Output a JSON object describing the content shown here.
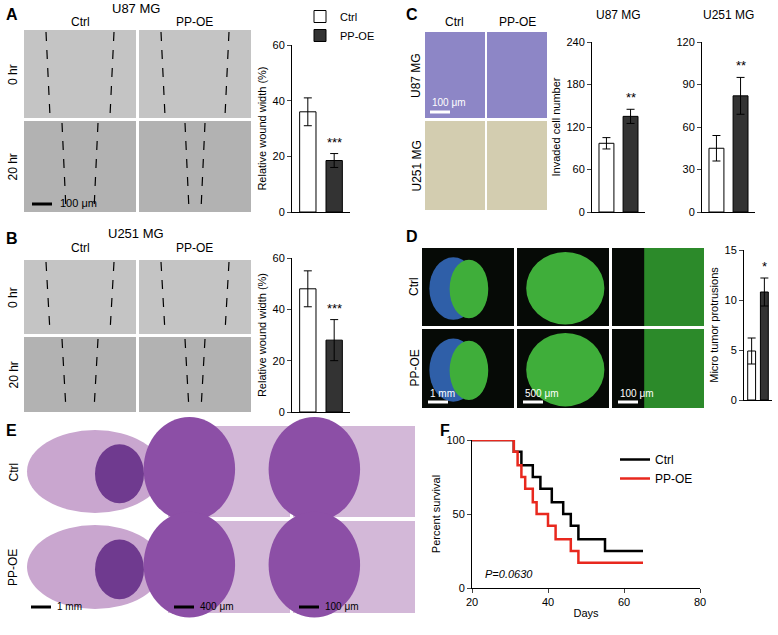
{
  "chart_data": [
    {
      "type": "bar",
      "y_label": "Relative wound width (%)",
      "categories": [
        "Ctrl",
        "PP-OE"
      ],
      "values": [
        36,
        18.5
      ],
      "errors": [
        5,
        2.5
      ],
      "colors": [
        "#ffffff",
        "#333333"
      ],
      "ylim": [
        0,
        60
      ],
      "yticks": [
        0,
        20,
        40,
        60
      ],
      "tick_labels": "y",
      "legend": "top",
      "annotations": [
        {
          "text": "***",
          "category": "PP-OE"
        }
      ]
    },
    {
      "type": "bar",
      "y_label": "Relative wound width (%)",
      "categories": [
        "Ctrl",
        "PP-OE"
      ],
      "values": [
        48,
        28
      ],
      "errors": [
        7,
        8
      ],
      "colors": [
        "#ffffff",
        "#333333"
      ],
      "ylim": [
        0,
        60
      ],
      "yticks": [
        0,
        20,
        40,
        60
      ],
      "tick_labels": "y",
      "annotations": [
        {
          "text": "***",
          "category": "PP-OE"
        }
      ]
    },
    {
      "type": "bar",
      "title": "U87 MG",
      "y_label": "Invaded cell number",
      "categories": [
        "Ctrl",
        "PP-OE"
      ],
      "values": [
        97,
        135
      ],
      "errors": [
        8,
        10
      ],
      "colors": [
        "#ffffff",
        "#333333"
      ],
      "ylim": [
        0,
        240
      ],
      "yticks": [
        0,
        60,
        120,
        180,
        240
      ],
      "tick_labels": "y",
      "annotations": [
        {
          "text": "**",
          "category": "PP-OE"
        }
      ]
    },
    {
      "type": "bar",
      "title": "U251 MG",
      "categories": [
        "Ctrl",
        "PP-OE"
      ],
      "values": [
        45,
        82
      ],
      "errors": [
        9,
        13
      ],
      "colors": [
        "#ffffff",
        "#333333"
      ],
      "ylim": [
        0,
        120
      ],
      "yticks": [
        0,
        30,
        60,
        90,
        120
      ],
      "tick_labels": "y",
      "annotations": [
        {
          "text": "**",
          "category": "PP-OE"
        }
      ]
    },
    {
      "type": "bar",
      "y_label": "Micro tumor protrusions",
      "categories": [
        "Ctrl",
        "PP-OE"
      ],
      "values": [
        4.9,
        10.8
      ],
      "errors": [
        1.3,
        1.4
      ],
      "colors": [
        "#ffffff",
        "#333333"
      ],
      "ylim": [
        0,
        15
      ],
      "yticks": [
        0,
        5,
        10,
        15
      ],
      "tick_labels": "y",
      "annotations": [
        {
          "text": "*",
          "category": "PP-OE"
        }
      ]
    },
    {
      "type": "line",
      "x_label": "Days",
      "y_label": "Percent survival",
      "line_style": "step",
      "xlim": [
        20,
        80
      ],
      "xticks": [
        20,
        40,
        60,
        80
      ],
      "ylim": [
        0,
        100
      ],
      "yticks": [
        0,
        50,
        100
      ],
      "legend": "top right",
      "series": [
        {
          "name": "Ctrl",
          "color": "#000000",
          "x": [
            20,
            31,
            33,
            36,
            38,
            41,
            44,
            46,
            48,
            55,
            65
          ],
          "values": [
            100,
            92,
            83,
            75,
            67,
            58,
            50,
            42,
            33,
            25,
            25
          ]
        },
        {
          "name": "PP-OE",
          "color": "#e8281e",
          "x": [
            20,
            31,
            32,
            33,
            34,
            36,
            37,
            40,
            42,
            46,
            48,
            65
          ],
          "values": [
            100,
            92,
            83,
            75,
            67,
            58,
            50,
            42,
            33,
            25,
            17,
            17
          ]
        }
      ],
      "annotations": [
        {
          "text": "P=0.0630"
        }
      ]
    }
  ],
  "panels": [
    {
      "label": "A",
      "title": "U87 MG",
      "columns": [
        "Ctrl",
        "PP-OE"
      ],
      "rows": [
        "0 hr",
        "20 hr"
      ],
      "scale_bars": [
        "100 μm"
      ]
    },
    {
      "label": "B",
      "title": "U251 MG",
      "columns": [
        "Ctrl",
        "PP-OE"
      ],
      "rows": [
        "0 hr",
        "20 hr"
      ]
    },
    {
      "label": "C",
      "columns": [
        "Ctrl",
        "PP-OE"
      ],
      "rows": [
        "U87 MG",
        "U251 MG"
      ],
      "scale_bars": [
        "100 μm"
      ]
    },
    {
      "label": "D",
      "rows": [
        "Ctrl",
        "PP-OE"
      ],
      "scale_bars": [
        "1 mm",
        "500 μm",
        "100 μm"
      ]
    },
    {
      "label": "E",
      "rows": [
        "Ctrl",
        "PP-OE"
      ],
      "scale_bars": [
        "1 mm",
        "400 μm",
        "100 μm"
      ]
    },
    {
      "label": "F"
    }
  ]
}
